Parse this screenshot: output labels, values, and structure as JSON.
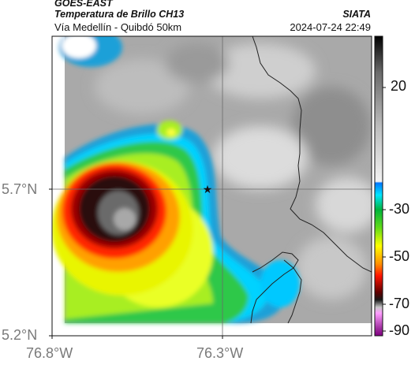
{
  "header": {
    "satellite": "GOES-EAST",
    "product": "Temperatura de Brillo CH13",
    "route": "Vía Medellín - Quibdó 50km",
    "organization": "SIATA",
    "datetime": "2024-07-24 22:49"
  },
  "map": {
    "lat_labels": [
      "5.7°N",
      "5.2°N"
    ],
    "lon_labels": [
      "76.8°W",
      "76.3°W"
    ],
    "marker": "star-marker"
  },
  "colorbar": {
    "labels": [
      "20",
      "-30",
      "-50",
      "-70",
      "-90"
    ],
    "colors": [
      "#000000",
      "#7a7a7a",
      "#ffffff",
      "#0090ff",
      "#00ffff",
      "#00c800",
      "#ffff00",
      "#ff8000",
      "#ff0000",
      "#800000",
      "#ffffff",
      "#ff80ff",
      "#800080"
    ]
  }
}
